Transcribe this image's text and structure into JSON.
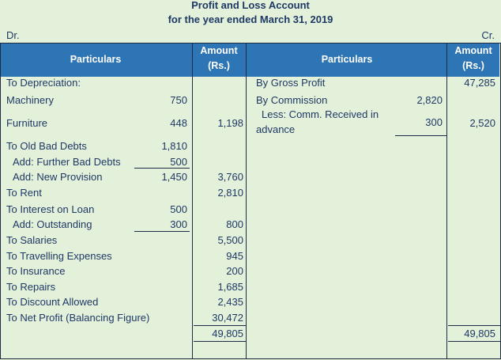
{
  "title": "Profit and Loss Account",
  "subtitle": "for the year ended March 31, 2019",
  "dr": "Dr.",
  "cr": "Cr.",
  "header": {
    "particulars_left": "Particulars",
    "amount_left": "Amount",
    "amount_left_unit": "(Rs.)",
    "particulars_right": "Particulars",
    "amount_right": "Amount",
    "amount_right_unit": "(Rs.)"
  },
  "debit": {
    "depreciation": "To Depreciation:",
    "machinery": "Machinery",
    "machinery_amt": "750",
    "furniture": "Furniture",
    "furniture_amt": "448",
    "depreciation_total": "1,198",
    "old_bad_debts": "To Old Bad Debts",
    "old_bad_debts_amt": "1,810",
    "further_bad_debts": "Add: Further Bad Debts",
    "further_bad_debts_amt": "500",
    "new_provision": "Add: New Provision",
    "new_provision_amt": "1,450",
    "bad_debts_total": "3,760",
    "rent": "To Rent",
    "rent_total": "2,810",
    "interest": "To Interest on Loan",
    "interest_amt": "500",
    "outstanding": "Add: Outstanding",
    "outstanding_amt": "300",
    "interest_total": "800",
    "salaries": "To Salaries",
    "salaries_total": "5,500",
    "travelling": "To Travelling Expenses",
    "travelling_total": "945",
    "insurance": "To Insurance",
    "insurance_total": "200",
    "repairs": "To Repairs",
    "repairs_total": "1,685",
    "discount": "To Discount Allowed",
    "discount_total": "2,435",
    "net_profit": "To Net Profit (Balancing Figure)",
    "net_profit_total": "30,472",
    "grand_total": "49,805"
  },
  "credit": {
    "gross_profit": "By Gross Profit",
    "gross_profit_total": "47,285",
    "commission": "By Commission",
    "commission_amt": "2,820",
    "less_line1": "Less: Comm. Received in",
    "less_line2": "advance",
    "less_amt": "300",
    "commission_total": "2,520",
    "grand_total": "49,805"
  }
}
